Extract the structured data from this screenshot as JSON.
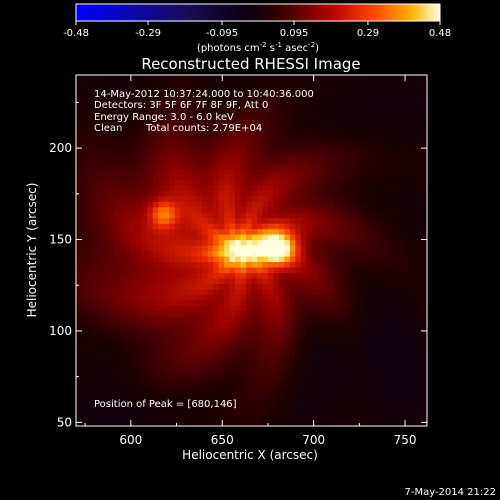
{
  "colorbar": {
    "ticks": [
      "-0.48",
      "-0.29",
      "-0.095",
      "0.095",
      "0.29",
      "0.48"
    ],
    "tick_values": [
      -0.48,
      -0.29,
      -0.095,
      0.095,
      0.29,
      0.48
    ],
    "range": [
      -0.48,
      0.48
    ],
    "units_main": "(photons cm",
    "units_sup1": "-2",
    "units_mid1": " s",
    "units_sup2": "-1",
    "units_mid2": " asec",
    "units_sup3": "-2",
    "units_end": ")"
  },
  "chart_data": {
    "type": "heatmap",
    "title": "Reconstructed RHESSI Image",
    "xlabel": "Heliocentric X (arcsec)",
    "ylabel": "Heliocentric Y (arcsec)",
    "xlim": [
      570,
      762
    ],
    "ylim": [
      48,
      240
    ],
    "x_ticks": [
      600,
      650,
      700,
      750
    ],
    "y_ticks": [
      50,
      100,
      150,
      200
    ],
    "annotations": {
      "line1": "14-May-2012 10:37:24.000 to 10:40:36.000",
      "line2": "Detectors: 3F 5F 6F 7F 8F 9F, Att 0",
      "line3": "Energy Range: 3.0 - 6.0 keV",
      "line4a": "Clean",
      "line4b": "Total counts: 2.79E+04",
      "peak": "Position of Peak = [680,146]"
    },
    "sources": [
      {
        "x": 680,
        "y": 146,
        "amp": 0.48,
        "sx": 7,
        "sy": 6
      },
      {
        "x": 660,
        "y": 144,
        "amp": 0.34,
        "sx": 10,
        "sy": 7
      },
      {
        "x": 618,
        "y": 164,
        "amp": 0.22,
        "sx": 5,
        "sy": 5
      },
      {
        "x": 650,
        "y": 152,
        "amp": 0.14,
        "sx": 42,
        "sy": 38
      },
      {
        "x": 635,
        "y": 130,
        "amp": 0.05,
        "sx": 60,
        "sy": 50
      }
    ],
    "timestamp": "7-May-2014 21:22"
  }
}
